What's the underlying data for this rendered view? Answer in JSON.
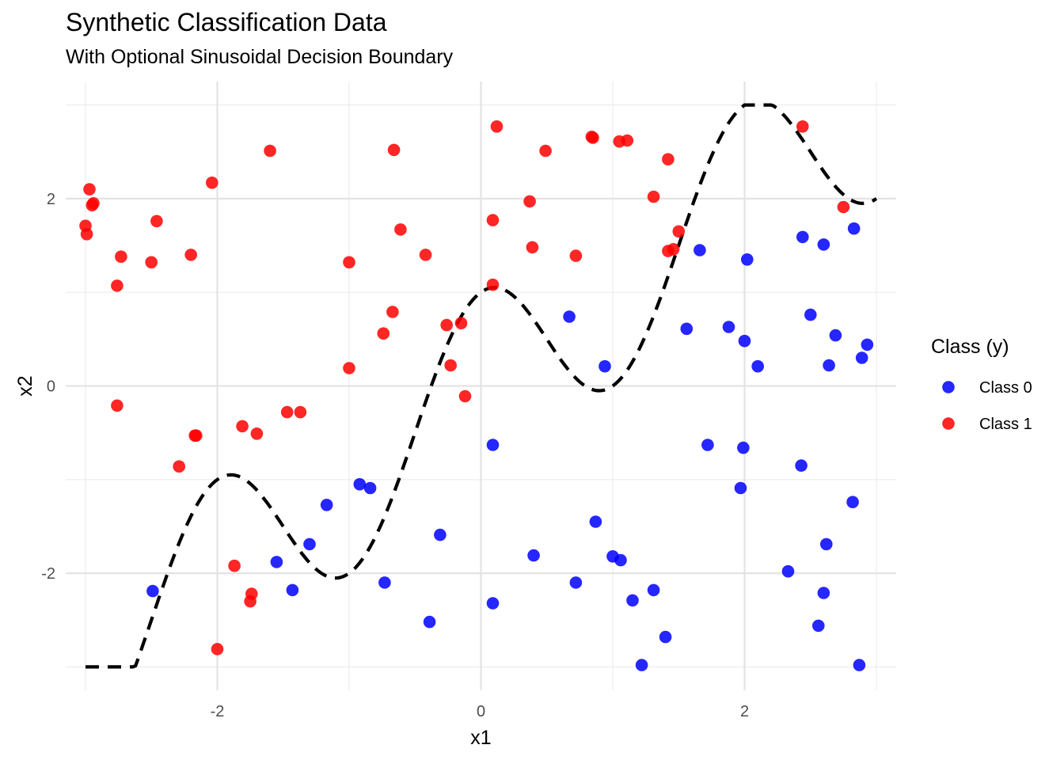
{
  "chart_data": {
    "type": "scatter",
    "title": "Synthetic Classification Data",
    "subtitle": "With Optional Sinusoidal Decision Boundary",
    "xlabel": "x1",
    "ylabel": "x2",
    "xlim": [
      -3.15,
      3.15
    ],
    "ylim": [
      -3.25,
      3.25
    ],
    "x_ticks": [
      -2,
      0,
      2
    ],
    "y_ticks": [
      -2,
      0,
      2
    ],
    "x_tick_labels": [
      "-2",
      "0",
      "2"
    ],
    "y_tick_labels": [
      "-2",
      "0",
      "2"
    ],
    "grid": true,
    "legend": {
      "title": "Class (y)",
      "position": "right",
      "entries": [
        "Class 0",
        "Class 1"
      ]
    },
    "boundary": {
      "style": "dashed",
      "color": "#000000",
      "x_range": [
        -3,
        3
      ]
    },
    "series": [
      {
        "name": "Class 0",
        "color": "#0000ff",
        "points": [
          [
            -2.49,
            -2.19
          ],
          [
            -1.55,
            -1.88
          ],
          [
            -1.43,
            -2.18
          ],
          [
            -1.3,
            -1.69
          ],
          [
            -1.17,
            -1.27
          ],
          [
            -0.92,
            -1.05
          ],
          [
            -0.84,
            -1.09
          ],
          [
            -0.73,
            -2.1
          ],
          [
            -0.39,
            -2.52
          ],
          [
            -0.31,
            -1.59
          ],
          [
            0.09,
            -0.63
          ],
          [
            0.09,
            -2.32
          ],
          [
            0.4,
            -1.81
          ],
          [
            0.67,
            0.74
          ],
          [
            0.72,
            -2.1
          ],
          [
            0.87,
            -1.45
          ],
          [
            0.94,
            0.21
          ],
          [
            1.0,
            -1.82
          ],
          [
            1.06,
            -1.86
          ],
          [
            1.15,
            -2.29
          ],
          [
            1.22,
            -2.98
          ],
          [
            1.31,
            -2.18
          ],
          [
            1.4,
            -2.68
          ],
          [
            1.56,
            0.61
          ],
          [
            1.66,
            1.45
          ],
          [
            1.72,
            -0.63
          ],
          [
            1.88,
            0.63
          ],
          [
            1.97,
            -1.09
          ],
          [
            1.99,
            -0.66
          ],
          [
            2.0,
            0.48
          ],
          [
            2.02,
            1.35
          ],
          [
            2.1,
            0.21
          ],
          [
            2.33,
            -1.98
          ],
          [
            2.43,
            -0.85
          ],
          [
            2.44,
            1.59
          ],
          [
            2.5,
            0.76
          ],
          [
            2.56,
            -2.56
          ],
          [
            2.6,
            -2.21
          ],
          [
            2.6,
            1.51
          ],
          [
            2.62,
            -1.69
          ],
          [
            2.64,
            0.22
          ],
          [
            2.69,
            0.54
          ],
          [
            2.82,
            -1.24
          ],
          [
            2.83,
            1.68
          ],
          [
            2.87,
            -2.98
          ],
          [
            2.89,
            0.3
          ],
          [
            2.93,
            0.44
          ]
        ]
      },
      {
        "name": "Class 1",
        "color": "#ff0000",
        "points": [
          [
            -3.0,
            1.71
          ],
          [
            -2.99,
            1.62
          ],
          [
            -2.97,
            2.1
          ],
          [
            -2.95,
            1.93
          ],
          [
            -2.94,
            1.95
          ],
          [
            -2.76,
            1.07
          ],
          [
            -2.76,
            -0.21
          ],
          [
            -2.73,
            1.38
          ],
          [
            -2.5,
            1.32
          ],
          [
            -2.46,
            1.76
          ],
          [
            -2.29,
            -0.86
          ],
          [
            -2.2,
            1.4
          ],
          [
            -2.17,
            -0.53
          ],
          [
            -2.16,
            -0.53
          ],
          [
            -2.04,
            2.17
          ],
          [
            -2.0,
            -2.81
          ],
          [
            -1.87,
            -1.92
          ],
          [
            -1.81,
            -0.43
          ],
          [
            -1.75,
            -2.3
          ],
          [
            -1.74,
            -2.22
          ],
          [
            -1.7,
            -0.51
          ],
          [
            -1.6,
            2.51
          ],
          [
            -1.47,
            -0.28
          ],
          [
            -1.37,
            -0.28
          ],
          [
            -1.0,
            0.19
          ],
          [
            -1.0,
            1.32
          ],
          [
            -0.74,
            0.56
          ],
          [
            -0.67,
            0.79
          ],
          [
            -0.66,
            2.52
          ],
          [
            -0.61,
            1.67
          ],
          [
            -0.42,
            1.4
          ],
          [
            -0.26,
            0.65
          ],
          [
            -0.23,
            0.22
          ],
          [
            -0.15,
            0.67
          ],
          [
            -0.12,
            -0.11
          ],
          [
            0.09,
            1.08
          ],
          [
            0.09,
            1.77
          ],
          [
            0.12,
            2.77
          ],
          [
            0.37,
            1.97
          ],
          [
            0.39,
            1.48
          ],
          [
            0.49,
            2.51
          ],
          [
            0.72,
            1.39
          ],
          [
            0.84,
            2.66
          ],
          [
            0.85,
            2.65
          ],
          [
            1.05,
            2.61
          ],
          [
            1.11,
            2.62
          ],
          [
            1.31,
            2.02
          ],
          [
            1.42,
            1.44
          ],
          [
            1.42,
            2.42
          ],
          [
            1.46,
            1.46
          ],
          [
            1.5,
            1.65
          ],
          [
            2.44,
            2.77
          ],
          [
            2.75,
            1.91
          ]
        ]
      }
    ]
  }
}
